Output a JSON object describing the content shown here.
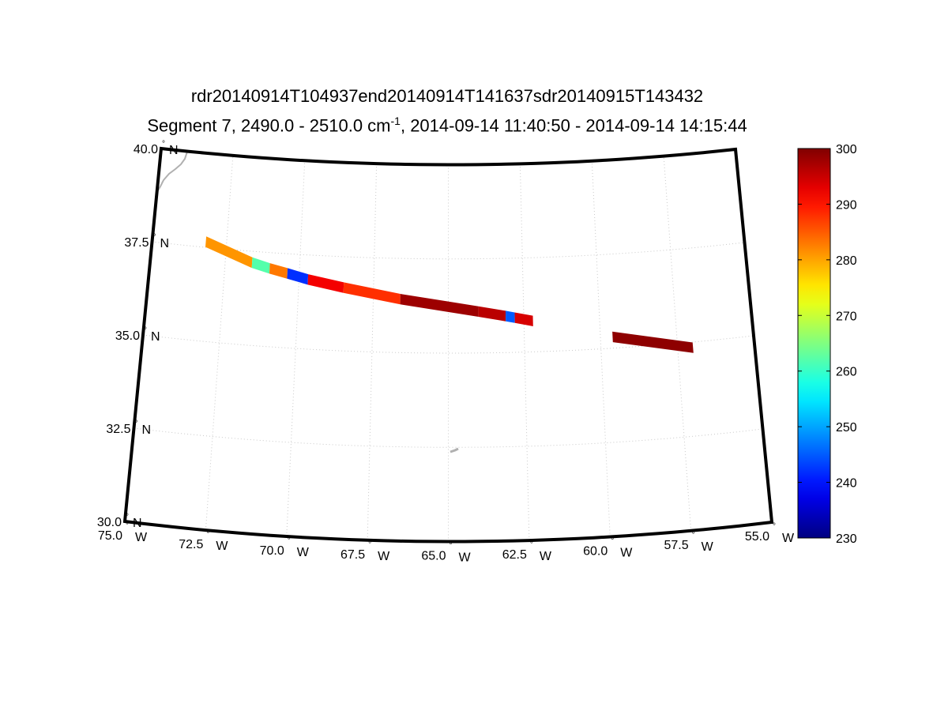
{
  "title": {
    "line1": "rdr20140914T104937end20140914T141637sdr20140915T143432",
    "line2_pre": "Segment 7, 2490.0 - 2510.0 cm",
    "line2_sup": "-1",
    "line2_post": ", 2014-09-14 11:40:50 - 2014-09-14 14:15:44"
  },
  "map": {
    "projection": "conic",
    "lat_range": [
      30.0,
      40.0
    ],
    "lon_range": [
      -75.0,
      -55.0
    ],
    "lat_labels": [
      "30.0",
      "32.5",
      "35.0",
      "37.5",
      "40.0"
    ],
    "lat_suffix": "N",
    "lon_labels": [
      "75.0",
      "72.5",
      "70.0",
      "67.5",
      "65.0",
      "62.5",
      "60.0",
      "57.5",
      "55.0"
    ],
    "lon_suffix": "W",
    "degree_symbol": "°",
    "grid": "dotted",
    "coastline_color": "#b0b0b0"
  },
  "colorbar": {
    "colormap": "jet",
    "min": 230,
    "max": 300,
    "ticks": [
      "230",
      "240",
      "250",
      "260",
      "270",
      "280",
      "290",
      "300"
    ]
  },
  "chart_data": {
    "type": "scatter",
    "title": "rdr20140914T104937end20140914T141637sdr20140915T143432",
    "subtitle": "Segment 7, 2490.0 - 2510.0 cm-1, 2014-09-14 11:40:50 - 2014-09-14 14:15:44",
    "clim": [
      230,
      300
    ],
    "swaths": [
      {
        "segments": [
          {
            "lon_start": -73.2,
            "lat_start": 37.65,
            "lon_end": -71.6,
            "lat_end": 37.2,
            "value": 281
          },
          {
            "lon_start": -71.6,
            "lat_start": 37.2,
            "lon_end": -71.0,
            "lat_end": 37.08,
            "value": 262
          },
          {
            "lon_start": -71.0,
            "lat_start": 37.08,
            "lon_end": -70.4,
            "lat_end": 36.98,
            "value": 283
          },
          {
            "lon_start": -70.4,
            "lat_start": 36.98,
            "lon_end": -69.7,
            "lat_end": 36.85,
            "value": 242
          },
          {
            "lon_start": -69.7,
            "lat_start": 36.85,
            "lon_end": -68.5,
            "lat_end": 36.68,
            "value": 292
          },
          {
            "lon_start": -68.5,
            "lat_start": 36.68,
            "lon_end": -66.6,
            "lat_end": 36.42,
            "value": 288
          },
          {
            "lon_start": -66.6,
            "lat_start": 36.42,
            "lon_end": -64.0,
            "lat_end": 36.1,
            "value": 298
          },
          {
            "lon_start": -64.0,
            "lat_start": 36.1,
            "lon_end": -63.1,
            "lat_end": 35.97,
            "value": 296
          },
          {
            "lon_start": -63.1,
            "lat_start": 35.97,
            "lon_end": -62.8,
            "lat_end": 35.92,
            "value": 245
          },
          {
            "lon_start": -62.8,
            "lat_start": 35.92,
            "lon_end": -62.2,
            "lat_end": 35.82,
            "value": 294
          }
        ]
      },
      {
        "segments": [
          {
            "lon_start": -59.6,
            "lat_start": 35.3,
            "lon_end": -57.0,
            "lat_end": 34.85,
            "value": 299
          }
        ]
      }
    ]
  }
}
